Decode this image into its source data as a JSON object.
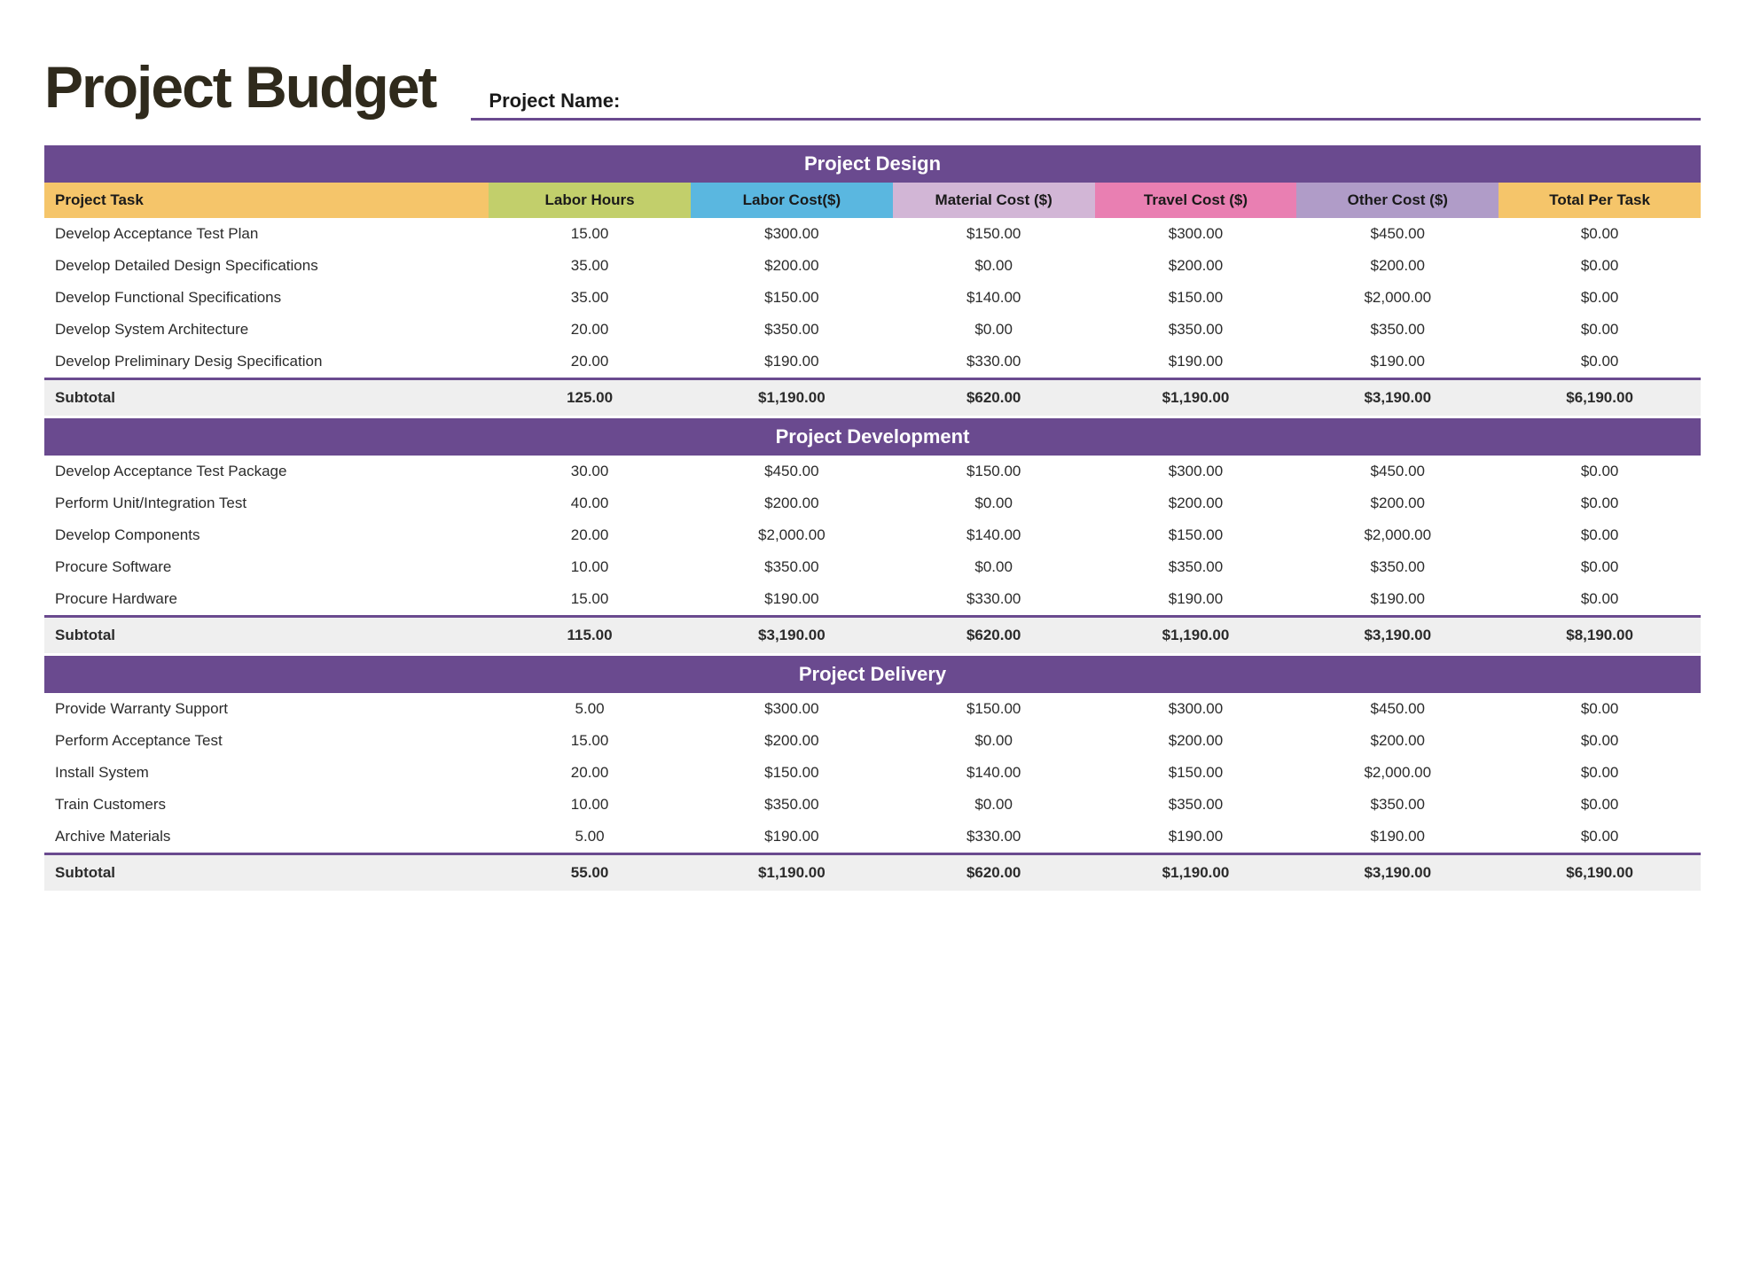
{
  "title": "Project Budget",
  "project_name_label": "Project Name:",
  "colors": {
    "section_header_bg": "#6a4a8f",
    "section_header_fg": "#ffffff",
    "subtotal_bg": "#efefef",
    "subtotal_border": "#6a4a8f",
    "title_color": "#2f2a1c"
  },
  "column_headers": [
    {
      "label": "Project Task",
      "bg": "#f5c56a"
    },
    {
      "label": "Labor Hours",
      "bg": "#c2cf6b"
    },
    {
      "label": "Labor Cost($)",
      "bg": "#5ab7e0"
    },
    {
      "label": "Material Cost ($)",
      "bg": "#d2b6d6"
    },
    {
      "label": "Travel Cost ($)",
      "bg": "#e97fb2"
    },
    {
      "label": "Other Cost ($)",
      "bg": "#b09cc8"
    },
    {
      "label": "Total Per Task",
      "bg": "#f5c56a"
    }
  ],
  "sections": [
    {
      "name": "Project Design",
      "rows": [
        {
          "task": "Develop Acceptance Test Plan",
          "labor_hours": "15.00",
          "labor_cost": "$300.00",
          "material_cost": "$150.00",
          "travel_cost": "$300.00",
          "other_cost": "$450.00",
          "total": "$0.00"
        },
        {
          "task": "Develop Detailed Design Specifications",
          "labor_hours": "35.00",
          "labor_cost": "$200.00",
          "material_cost": "$0.00",
          "travel_cost": "$200.00",
          "other_cost": "$200.00",
          "total": "$0.00"
        },
        {
          "task": "Develop Functional Specifications",
          "labor_hours": "35.00",
          "labor_cost": "$150.00",
          "material_cost": "$140.00",
          "travel_cost": "$150.00",
          "other_cost": "$2,000.00",
          "total": "$0.00"
        },
        {
          "task": "Develop System Architecture",
          "labor_hours": "20.00",
          "labor_cost": "$350.00",
          "material_cost": "$0.00",
          "travel_cost": "$350.00",
          "other_cost": "$350.00",
          "total": "$0.00"
        },
        {
          "task": "Develop Preliminary Desig Specification",
          "labor_hours": "20.00",
          "labor_cost": "$190.00",
          "material_cost": "$330.00",
          "travel_cost": "$190.00",
          "other_cost": "$190.00",
          "total": "$0.00"
        }
      ],
      "subtotal": {
        "label": "Subtotal",
        "labor_hours": "125.00",
        "labor_cost": "$1,190.00",
        "material_cost": "$620.00",
        "travel_cost": "$1,190.00",
        "other_cost": "$3,190.00",
        "total": "$6,190.00"
      }
    },
    {
      "name": "Project Development",
      "rows": [
        {
          "task": "Develop Acceptance Test Package",
          "labor_hours": "30.00",
          "labor_cost": "$450.00",
          "material_cost": "$150.00",
          "travel_cost": "$300.00",
          "other_cost": "$450.00",
          "total": "$0.00"
        },
        {
          "task": "Perform Unit/Integration Test",
          "labor_hours": "40.00",
          "labor_cost": "$200.00",
          "material_cost": "$0.00",
          "travel_cost": "$200.00",
          "other_cost": "$200.00",
          "total": "$0.00"
        },
        {
          "task": "Develop Components",
          "labor_hours": "20.00",
          "labor_cost": "$2,000.00",
          "material_cost": "$140.00",
          "travel_cost": "$150.00",
          "other_cost": "$2,000.00",
          "total": "$0.00"
        },
        {
          "task": "Procure Software",
          "labor_hours": "10.00",
          "labor_cost": "$350.00",
          "material_cost": "$0.00",
          "travel_cost": "$350.00",
          "other_cost": "$350.00",
          "total": "$0.00"
        },
        {
          "task": "Procure Hardware",
          "labor_hours": "15.00",
          "labor_cost": "$190.00",
          "material_cost": "$330.00",
          "travel_cost": "$190.00",
          "other_cost": "$190.00",
          "total": "$0.00"
        }
      ],
      "subtotal": {
        "label": "Subtotal",
        "labor_hours": "115.00",
        "labor_cost": "$3,190.00",
        "material_cost": "$620.00",
        "travel_cost": "$1,190.00",
        "other_cost": "$3,190.00",
        "total": "$8,190.00"
      }
    },
    {
      "name": "Project Delivery",
      "rows": [
        {
          "task": "Provide Warranty Support",
          "labor_hours": "5.00",
          "labor_cost": "$300.00",
          "material_cost": "$150.00",
          "travel_cost": "$300.00",
          "other_cost": "$450.00",
          "total": "$0.00"
        },
        {
          "task": "Perform Acceptance Test",
          "labor_hours": "15.00",
          "labor_cost": "$200.00",
          "material_cost": "$0.00",
          "travel_cost": "$200.00",
          "other_cost": "$200.00",
          "total": "$0.00"
        },
        {
          "task": "Install System",
          "labor_hours": "20.00",
          "labor_cost": "$150.00",
          "material_cost": "$140.00",
          "travel_cost": "$150.00",
          "other_cost": "$2,000.00",
          "total": "$0.00"
        },
        {
          "task": "Train Customers",
          "labor_hours": "10.00",
          "labor_cost": "$350.00",
          "material_cost": "$0.00",
          "travel_cost": "$350.00",
          "other_cost": "$350.00",
          "total": "$0.00"
        },
        {
          "task": "Archive Materials",
          "labor_hours": "5.00",
          "labor_cost": "$190.00",
          "material_cost": "$330.00",
          "travel_cost": "$190.00",
          "other_cost": "$190.00",
          "total": "$0.00"
        }
      ],
      "subtotal": {
        "label": "Subtotal",
        "labor_hours": "55.00",
        "labor_cost": "$1,190.00",
        "material_cost": "$620.00",
        "travel_cost": "$1,190.00",
        "other_cost": "$3,190.00",
        "total": "$6,190.00"
      }
    }
  ]
}
